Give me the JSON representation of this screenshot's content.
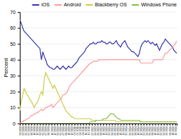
{
  "chart_data": {
    "type": "line",
    "ylabel": "Percent",
    "ylim": [
      0,
      70
    ],
    "yticks": [
      0,
      10,
      20,
      30,
      40,
      50,
      60,
      70
    ],
    "grid": true,
    "legend": "top",
    "categories": [
      "01\n2008",
      null,
      "03\n2008",
      null,
      "05\n2008",
      null,
      "07\n2008",
      null,
      "08\n2008",
      null,
      "10\n2008",
      null,
      "12\n2008",
      null,
      "03\n2009",
      null,
      "05\n2009",
      null,
      "07\n2009",
      null,
      "08\n2009",
      null,
      "10\n2009",
      null,
      "12\n2009",
      null,
      "03\n2010",
      null,
      "05\n2010",
      null,
      "07\n2010",
      null,
      "08\n2010",
      null,
      "10\n2010",
      null,
      "12\n2010",
      null,
      "03\n2011",
      null,
      "05\n2011",
      null,
      "06\n2011",
      null,
      "08\n2011",
      null,
      "10\n2011",
      null,
      "12\n2011",
      null,
      "02\n2012",
      null,
      "04\n2012",
      null,
      "06\n2012",
      null,
      "08\n2012",
      null,
      "10\n2012",
      null,
      "12\n2012",
      null,
      "02\n2013",
      null,
      "04\n2013",
      null,
      "06\n2013",
      null,
      "08\n2013",
      null,
      "10\n2013",
      null,
      "12\n2013",
      null,
      "02\n2014",
      null,
      "04\n2014",
      null,
      "06\n2014",
      null,
      "08\n2014",
      null,
      "10\n2014",
      null,
      "12\n2014",
      null,
      "02\n2015",
      null,
      "04\n2015",
      null,
      "06\n2015",
      null,
      "08\n2015",
      null,
      "10\n2015",
      null,
      "12\n2015",
      null,
      "02\n2016",
      null,
      "04\n2016",
      null,
      "06\n2016",
      null,
      "08\n2016",
      null,
      "10\n2016",
      null,
      "12\n2016",
      null
    ],
    "series": [
      {
        "name": "iOS",
        "color": "#3333aa",
        "values": [
          65,
          63,
          60,
          58,
          57,
          56,
          55,
          54,
          53,
          52,
          51,
          50,
          49,
          48,
          47,
          40,
          45,
          42,
          40,
          37,
          36,
          35,
          35,
          34,
          34,
          35,
          36,
          35,
          34,
          35,
          36,
          35,
          34,
          35,
          36,
          35,
          35,
          36,
          37,
          38,
          39,
          41,
          42,
          43,
          44,
          45,
          47,
          48,
          49,
          50,
          50,
          51,
          50,
          50,
          51,
          51,
          51,
          52,
          51,
          51,
          50,
          50,
          51,
          51,
          50,
          50,
          51,
          52,
          50,
          49,
          48,
          50,
          51,
          52,
          50,
          48,
          47,
          46,
          45,
          45,
          44,
          43,
          42,
          44,
          48,
          50,
          51,
          52,
          51,
          52,
          51,
          50,
          51,
          50,
          49,
          50,
          48,
          46,
          48,
          50,
          51,
          53,
          52,
          51,
          50,
          49,
          48,
          46,
          45,
          44
        ]
      },
      {
        "name": "Android",
        "color": "#ff9999",
        "values": [
          0,
          1,
          1,
          2,
          2,
          3,
          3,
          4,
          5,
          5,
          6,
          6,
          7,
          7,
          8,
          9,
          8,
          9,
          10,
          10,
          11,
          11,
          12,
          10,
          11,
          12,
          13,
          14,
          15,
          16,
          18,
          18,
          19,
          20,
          22,
          24,
          25,
          26,
          27,
          28,
          29,
          30,
          31,
          32,
          33,
          34,
          35,
          36,
          37,
          38,
          38,
          39,
          39,
          39,
          39,
          40,
          40,
          40,
          40,
          40,
          40,
          40,
          40,
          40,
          40,
          40,
          40,
          40,
          40,
          40,
          40,
          40,
          40,
          40,
          40,
          40,
          40,
          40,
          40,
          40,
          40,
          40,
          40,
          40,
          38,
          38,
          38,
          38,
          38,
          38,
          38,
          38,
          38,
          40,
          40,
          40,
          40,
          40,
          40,
          40,
          42,
          44,
          44,
          45,
          46,
          47,
          48,
          49,
          50,
          52
        ]
      },
      {
        "name": "Blackberry OS",
        "color": "#cccc44",
        "values": [
          8,
          14,
          18,
          22,
          20,
          18,
          17,
          15,
          14,
          12,
          10,
          12,
          13,
          15,
          18,
          20,
          18,
          28,
          32,
          30,
          28,
          26,
          24,
          22,
          24,
          22,
          20,
          18,
          16,
          14,
          12,
          10,
          8,
          7,
          6,
          5,
          4,
          4,
          3,
          3,
          3,
          3,
          3,
          3,
          3,
          3,
          3,
          3,
          3,
          3,
          2,
          2,
          2,
          2,
          2,
          2,
          2,
          2,
          2,
          2,
          2,
          2,
          2,
          2,
          2,
          2,
          2,
          1,
          1,
          1,
          1,
          1,
          1,
          1,
          1,
          1,
          1,
          1,
          1,
          1,
          1,
          1,
          1,
          1,
          1,
          1,
          1,
          1,
          1,
          1,
          1,
          1,
          1,
          1,
          1,
          1,
          1,
          1,
          1,
          1,
          1,
          1,
          1,
          1,
          1,
          1,
          1,
          1,
          1,
          1
        ]
      },
      {
        "name": "Windows Phone",
        "color": "#88bb44",
        "values": [
          0,
          0,
          0,
          0,
          0,
          0,
          0,
          0,
          0,
          0,
          0,
          0,
          0,
          0,
          0,
          0,
          0,
          0,
          0,
          0,
          0,
          0,
          0,
          0,
          0,
          0,
          0,
          0,
          0,
          0,
          0,
          0,
          0,
          0,
          0,
          0,
          0,
          0,
          0,
          0,
          0,
          0,
          0,
          0,
          0,
          0,
          0,
          0,
          0,
          1,
          1,
          1,
          1,
          2,
          2,
          2,
          2,
          2,
          3,
          3,
          3,
          4,
          5,
          6,
          6,
          6,
          5,
          4,
          3,
          3,
          2,
          2,
          2,
          2,
          2,
          2,
          2,
          2,
          2,
          2,
          2,
          2,
          2,
          2,
          1,
          1,
          1,
          1,
          1,
          1,
          1,
          1,
          1,
          1,
          1,
          1,
          1,
          1,
          1,
          1,
          1,
          1,
          1,
          1,
          1,
          1,
          1,
          1,
          1,
          1
        ]
      }
    ]
  }
}
